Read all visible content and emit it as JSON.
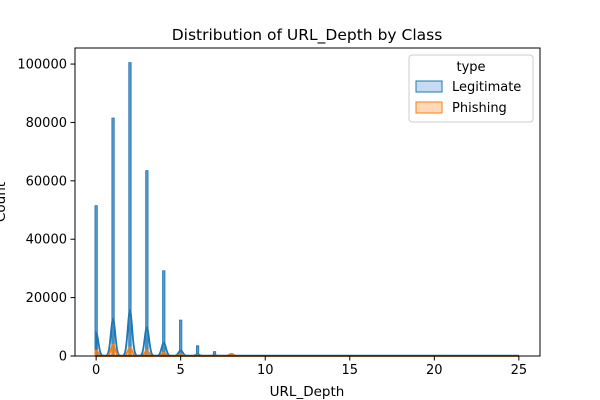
{
  "chart_data": {
    "type": "histogram",
    "title": "Distribution of URL_Depth by Class",
    "xlabel": "URL_Depth",
    "ylabel": "Count",
    "xlim": [
      -1.25,
      26.25
    ],
    "ylim": [
      0,
      105500
    ],
    "xticks": [
      0,
      5,
      10,
      15,
      20,
      25
    ],
    "yticks": [
      0,
      20000,
      40000,
      60000,
      80000,
      100000
    ],
    "grid": false,
    "legend": {
      "title": "type",
      "placement": "top-right",
      "entries": [
        "Legitimate",
        "Phishing"
      ]
    },
    "colors": {
      "Legitimate": "#1f77b4",
      "Phishing": "#ff7f0e",
      "Legitimate_fill": "#c6dbef",
      "Phishing_fill": "#fdd9b8"
    },
    "series": [
      {
        "name": "Legitimate",
        "x": [
          0,
          1,
          2,
          3,
          4,
          5,
          6,
          7,
          8
        ],
        "values": [
          51500,
          81500,
          100500,
          63500,
          29200,
          12300,
          3500,
          1500,
          400
        ]
      },
      {
        "name": "Phishing",
        "x": [
          0,
          1,
          2,
          3,
          4,
          5,
          6,
          7,
          8
        ],
        "values": [
          2000,
          4000,
          3000,
          2000,
          1200,
          800,
          400,
          300,
          800
        ]
      }
    ]
  }
}
